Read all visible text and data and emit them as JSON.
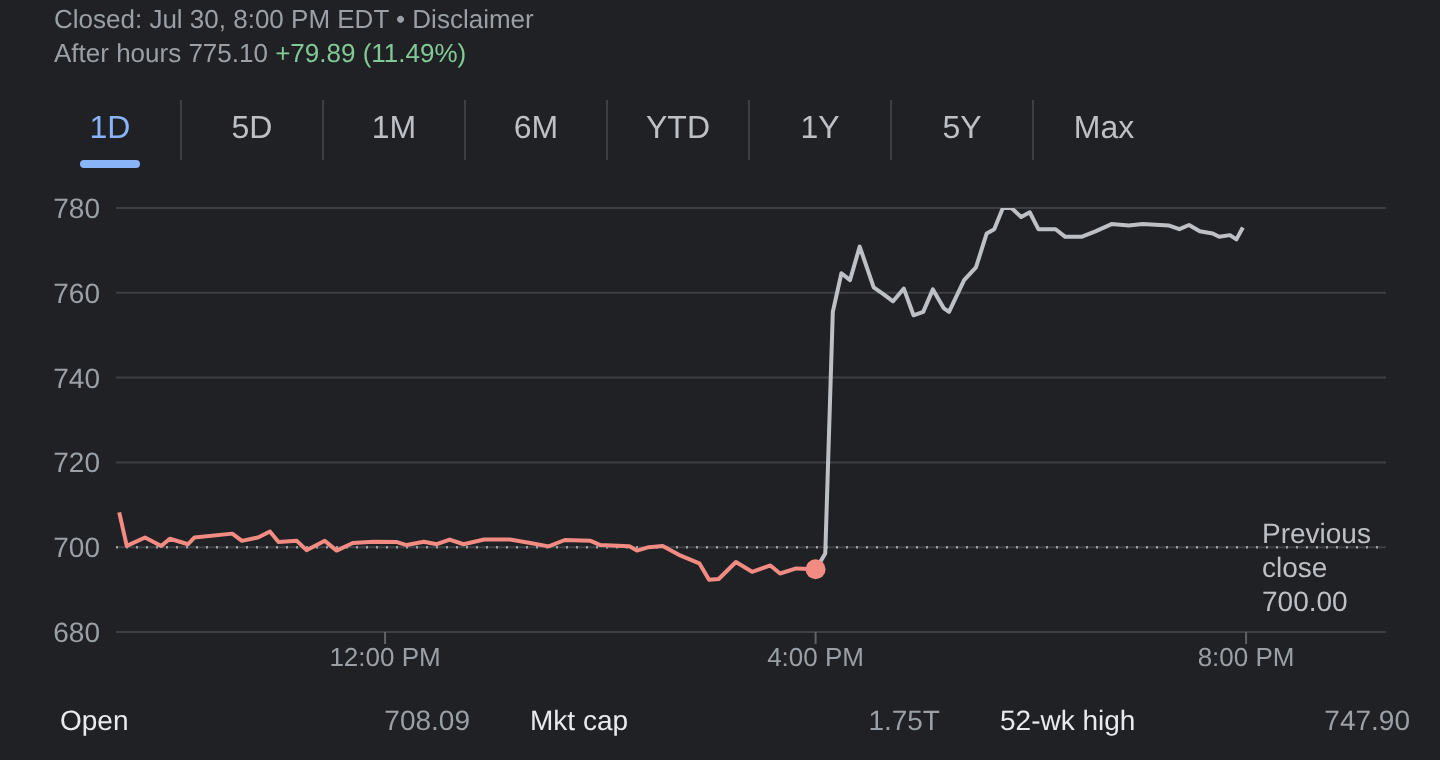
{
  "chart_data": {
    "type": "line",
    "annotations": [
      "Closed: Jul 30, 8:00 PM EDT • Disclaimer",
      "After hours 775.10",
      "+79.89 (11.49%)",
      "1D",
      "5D",
      "1M",
      "6M",
      "YTD",
      "1Y",
      "5Y",
      "Max",
      "Open",
      "708.09",
      "Mkt cap",
      "1.75T",
      "52-wk high",
      "747.90"
    ],
    "xlim": [
      9.5,
      21.3
    ],
    "xticks": [
      {
        "value": 12,
        "label": "12:00 PM"
      },
      {
        "value": 16,
        "label": "4:00 PM"
      },
      {
        "value": 20,
        "label": "8:00 PM"
      }
    ],
    "ylim": [
      680,
      780
    ],
    "yticks": [
      680,
      700,
      720,
      740,
      760,
      780
    ],
    "grid": "y",
    "legend": false,
    "marker": "none",
    "line_style": "solid",
    "ref_lines": [
      {
        "axis": "y",
        "value": 700,
        "label": "Previous close 700.00",
        "color": "#9aa0a6",
        "line_style": "dotted"
      }
    ],
    "series": [
      {
        "color": "#f28b82",
        "x": [
          9.53,
          9.6,
          9.77,
          9.92,
          10.0,
          10.17,
          10.23,
          10.58,
          10.67,
          10.82,
          10.93,
          11.01,
          11.18,
          11.27,
          11.44,
          11.55,
          11.7,
          11.89,
          12.11,
          12.2,
          12.36,
          12.48,
          12.6,
          12.73,
          12.92,
          13.16,
          13.35,
          13.52,
          13.67,
          13.91,
          14.0,
          14.27,
          14.34,
          14.45,
          14.58,
          14.73,
          14.92,
          15.01,
          15.1,
          15.26,
          15.41,
          15.58,
          15.67,
          15.82,
          16.0
        ],
        "values": [
          708.2,
          700.3,
          702.3,
          700.3,
          702,
          700.7,
          702.3,
          703.2,
          701.5,
          702.3,
          703.7,
          701.2,
          701.5,
          699.3,
          701.5,
          699.2,
          701,
          701.3,
          701.2,
          700.5,
          701.3,
          700.7,
          701.8,
          700.7,
          701.8,
          701.8,
          701,
          700.2,
          701.7,
          701.5,
          700.5,
          700.2,
          699.2,
          700,
          700.3,
          698.2,
          696.2,
          692.3,
          692.5,
          696.5,
          694.2,
          695.7,
          693.8,
          695,
          694.8
        ]
      },
      {
        "color": "#bdc1c6",
        "x": [
          16.0,
          16.09,
          16.16,
          16.24,
          16.32,
          16.41,
          16.54,
          16.63,
          16.72,
          16.82,
          16.91,
          17.0,
          17.09,
          17.19,
          17.24,
          17.38,
          17.49,
          17.59,
          17.66,
          17.74,
          17.82,
          17.91,
          17.99,
          18.07,
          18.23,
          18.32,
          18.47,
          18.6,
          18.75,
          18.91,
          19.04,
          19.28,
          19.38,
          19.47,
          19.57,
          19.69,
          19.75,
          19.85,
          19.91,
          19.97
        ],
        "values": [
          694.7,
          698.5,
          755.5,
          764.6,
          763,
          770.9,
          761.3,
          759.7,
          758,
          761,
          754.7,
          755.5,
          760.8,
          756.4,
          755.5,
          763,
          766,
          774,
          775,
          780,
          780,
          777.9,
          779,
          775,
          775,
          773.2,
          773.2,
          774.5,
          776.2,
          775.9,
          776.2,
          775.9,
          775,
          776,
          774.5,
          774,
          773.2,
          773.6,
          772.6,
          775.4
        ]
      },
      {
        "type": "scatter",
        "marker": "circle",
        "color": "#f28b82",
        "x": [
          16.0
        ],
        "values": [
          694.8
        ]
      }
    ]
  }
}
